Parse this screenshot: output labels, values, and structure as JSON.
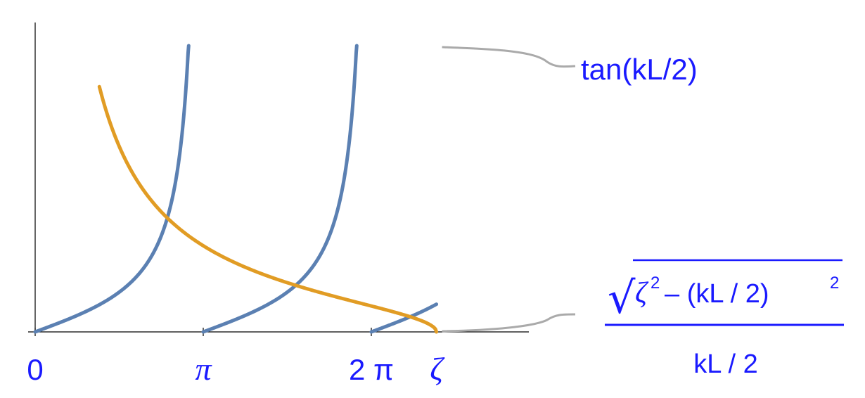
{
  "chart_data": {
    "type": "line",
    "x_ticks": [
      {
        "value": 0,
        "label": "0"
      },
      {
        "value": 3.14159,
        "label": "π"
      },
      {
        "value": 6.28318,
        "label": "2 π"
      },
      {
        "value": 7.5,
        "label": "ζ"
      }
    ],
    "zeta": 7.5,
    "xlim": [
      0,
      9.3
    ],
    "ylim": [
      0,
      7.2
    ],
    "series": [
      {
        "name": "tan(kL/2)",
        "color": "#5b80b2",
        "x_domain": [
          0,
          7.5
        ]
      },
      {
        "name": "sqrt(ζ^2 - (kL/2)^2) / (kL/2)",
        "color": "#e19c24",
        "x_domain": [
          1.2,
          7.5
        ]
      }
    ],
    "labels": {
      "tan_label": "tan(kL/2)",
      "frac_sqrt_zeta": "ζ",
      "frac_sqrt_sup": "2",
      "frac_sqrt_rest": "– (kL / 2)",
      "frac_sqrt_sup2": "2",
      "frac_denominator": "kL / 2"
    },
    "label_line_color": "#aaaaaa",
    "grid": false,
    "legend": "callout-right"
  }
}
